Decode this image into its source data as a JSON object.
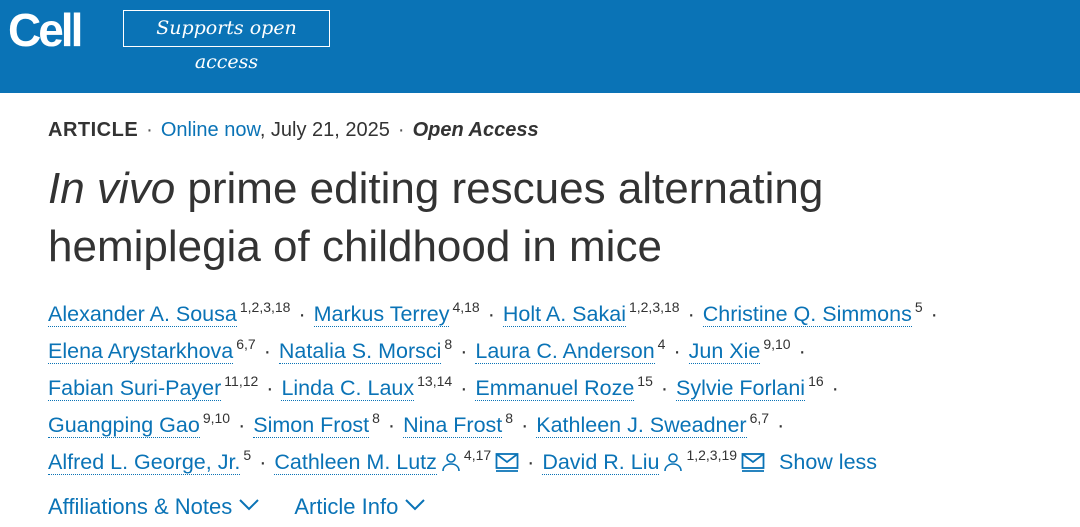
{
  "header": {
    "logo": "Cell",
    "badge": "Supports open access",
    "bar_color": "#0a73b6"
  },
  "article": {
    "type": "ARTICLE",
    "online_label": "Online now",
    "date": ", July 21, 2025",
    "access": "Open Access",
    "title_italic": "In vivo",
    "title_rest_1": " prime editing rescues alternating",
    "title_rest_2": "hemiplegia of childhood in mice"
  },
  "authors": [
    {
      "name": "Alexander A. Sousa",
      "sup": "1,2,3,18"
    },
    {
      "name": "Markus Terrey",
      "sup": "4,18"
    },
    {
      "name": "Holt A. Sakai",
      "sup": "1,2,3,18"
    },
    {
      "name": "Christine Q. Simmons",
      "sup": "5"
    },
    {
      "name": "Elena Arystarkhova",
      "sup": "6,7"
    },
    {
      "name": "Natalia S. Morsci",
      "sup": "8"
    },
    {
      "name": "Laura C. Anderson",
      "sup": "4"
    },
    {
      "name": "Jun Xie",
      "sup": "9,10"
    },
    {
      "name": "Fabian Suri-Payer",
      "sup": "11,12"
    },
    {
      "name": "Linda C. Laux",
      "sup": "13,14"
    },
    {
      "name": "Emmanuel Roze",
      "sup": "15"
    },
    {
      "name": "Sylvie Forlani",
      "sup": "16"
    },
    {
      "name": "Guangping Gao",
      "sup": "9,10"
    },
    {
      "name": "Simon Frost",
      "sup": "8"
    },
    {
      "name": "Nina Frost",
      "sup": "8"
    },
    {
      "name": "Kathleen J. Sweadner",
      "sup": "6,7"
    },
    {
      "name": "Alfred L. George, Jr.",
      "sup": "5"
    },
    {
      "name": "Cathleen M. Lutz",
      "sup": "4,17"
    },
    {
      "name": "David R. Liu",
      "sup": "1,2,3,19"
    }
  ],
  "show_less": "Show less",
  "tabs": {
    "affiliations": "Affiliations & Notes",
    "article_info": "Article Info"
  },
  "icons": {
    "person": "person-icon",
    "mail": "mail-icon",
    "chevron": "chevron-down-icon"
  }
}
